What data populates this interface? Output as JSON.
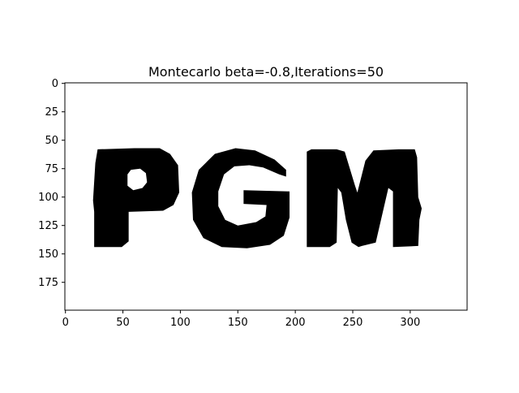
{
  "chart_data": {
    "type": "heatmap",
    "title": "Montecarlo beta=-0.8,Iterations=50",
    "xlabel": "",
    "ylabel": "",
    "image_size": [
      350,
      200
    ],
    "xlim": [
      -0.5,
      349.5
    ],
    "ylim": [
      199.5,
      -0.5
    ],
    "x_ticks": [
      0,
      50,
      100,
      150,
      200,
      250,
      300
    ],
    "y_ticks": [
      0,
      25,
      50,
      75,
      100,
      125,
      150,
      175
    ],
    "colormap": {
      "foreground": "#000000",
      "background": "#ffffff"
    },
    "grid": false,
    "legend": "none",
    "image_text": "PGM",
    "letters": [
      {
        "char": "P",
        "x_range": [
          25,
          98
        ],
        "y_range": [
          57,
          144
        ]
      },
      {
        "char": "G",
        "x_range": [
          110,
          195
        ],
        "y_range": [
          57,
          145
        ]
      },
      {
        "char": "M",
        "x_range": [
          210,
          311
        ],
        "y_range": [
          58,
          144
        ]
      }
    ]
  }
}
